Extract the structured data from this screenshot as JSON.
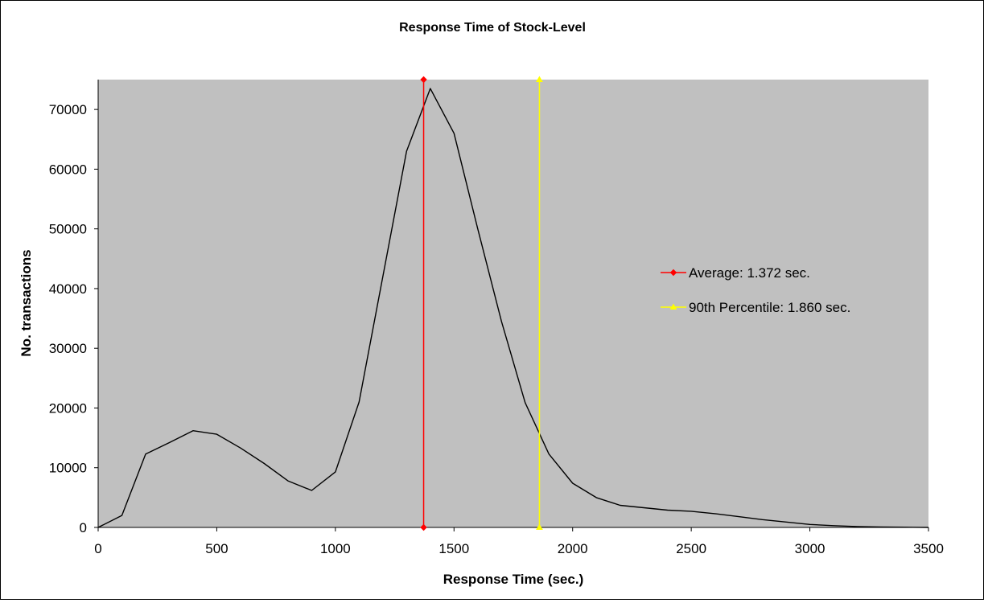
{
  "chart_data": {
    "type": "line",
    "title": "Response Time of Stock-Level",
    "xlabel": "Response Time (sec.)",
    "ylabel": "No. transactions",
    "xlim": [
      0,
      3500
    ],
    "ylim": [
      0,
      75000
    ],
    "xticks": [
      0,
      500,
      1000,
      1500,
      2000,
      2500,
      3000,
      3500
    ],
    "yticks": [
      0,
      10000,
      20000,
      30000,
      40000,
      50000,
      60000,
      70000
    ],
    "plot_background": "#c0c0c0",
    "grid": false,
    "legend_position": "right",
    "series": [
      {
        "color": "#000000",
        "x": [
          0,
          100,
          200,
          300,
          400,
          500,
          600,
          700,
          800,
          900,
          1000,
          1100,
          1200,
          1300,
          1400,
          1500,
          1600,
          1700,
          1800,
          1900,
          2000,
          2100,
          2200,
          2300,
          2400,
          2500,
          2600,
          2700,
          2800,
          2900,
          3000,
          3100,
          3200,
          3300,
          3400,
          3500
        ],
        "y": [
          0,
          2000,
          12300,
          14200,
          16200,
          15600,
          13300,
          10700,
          7800,
          6200,
          9300,
          21000,
          42000,
          63000,
          73500,
          66000,
          50000,
          34500,
          20900,
          12300,
          7400,
          5000,
          3700,
          3300,
          2900,
          2700,
          2300,
          1800,
          1300,
          900,
          500,
          300,
          150,
          80,
          40,
          0
        ]
      }
    ],
    "reference_lines": [
      {
        "name": "Average: 1.372 sec.",
        "x": 1372,
        "color": "#ff0000",
        "marker": "diamond"
      },
      {
        "name": "90th Percentile: 1.860 sec.",
        "x": 1860,
        "color": "#ffff00",
        "marker": "triangle"
      }
    ]
  }
}
